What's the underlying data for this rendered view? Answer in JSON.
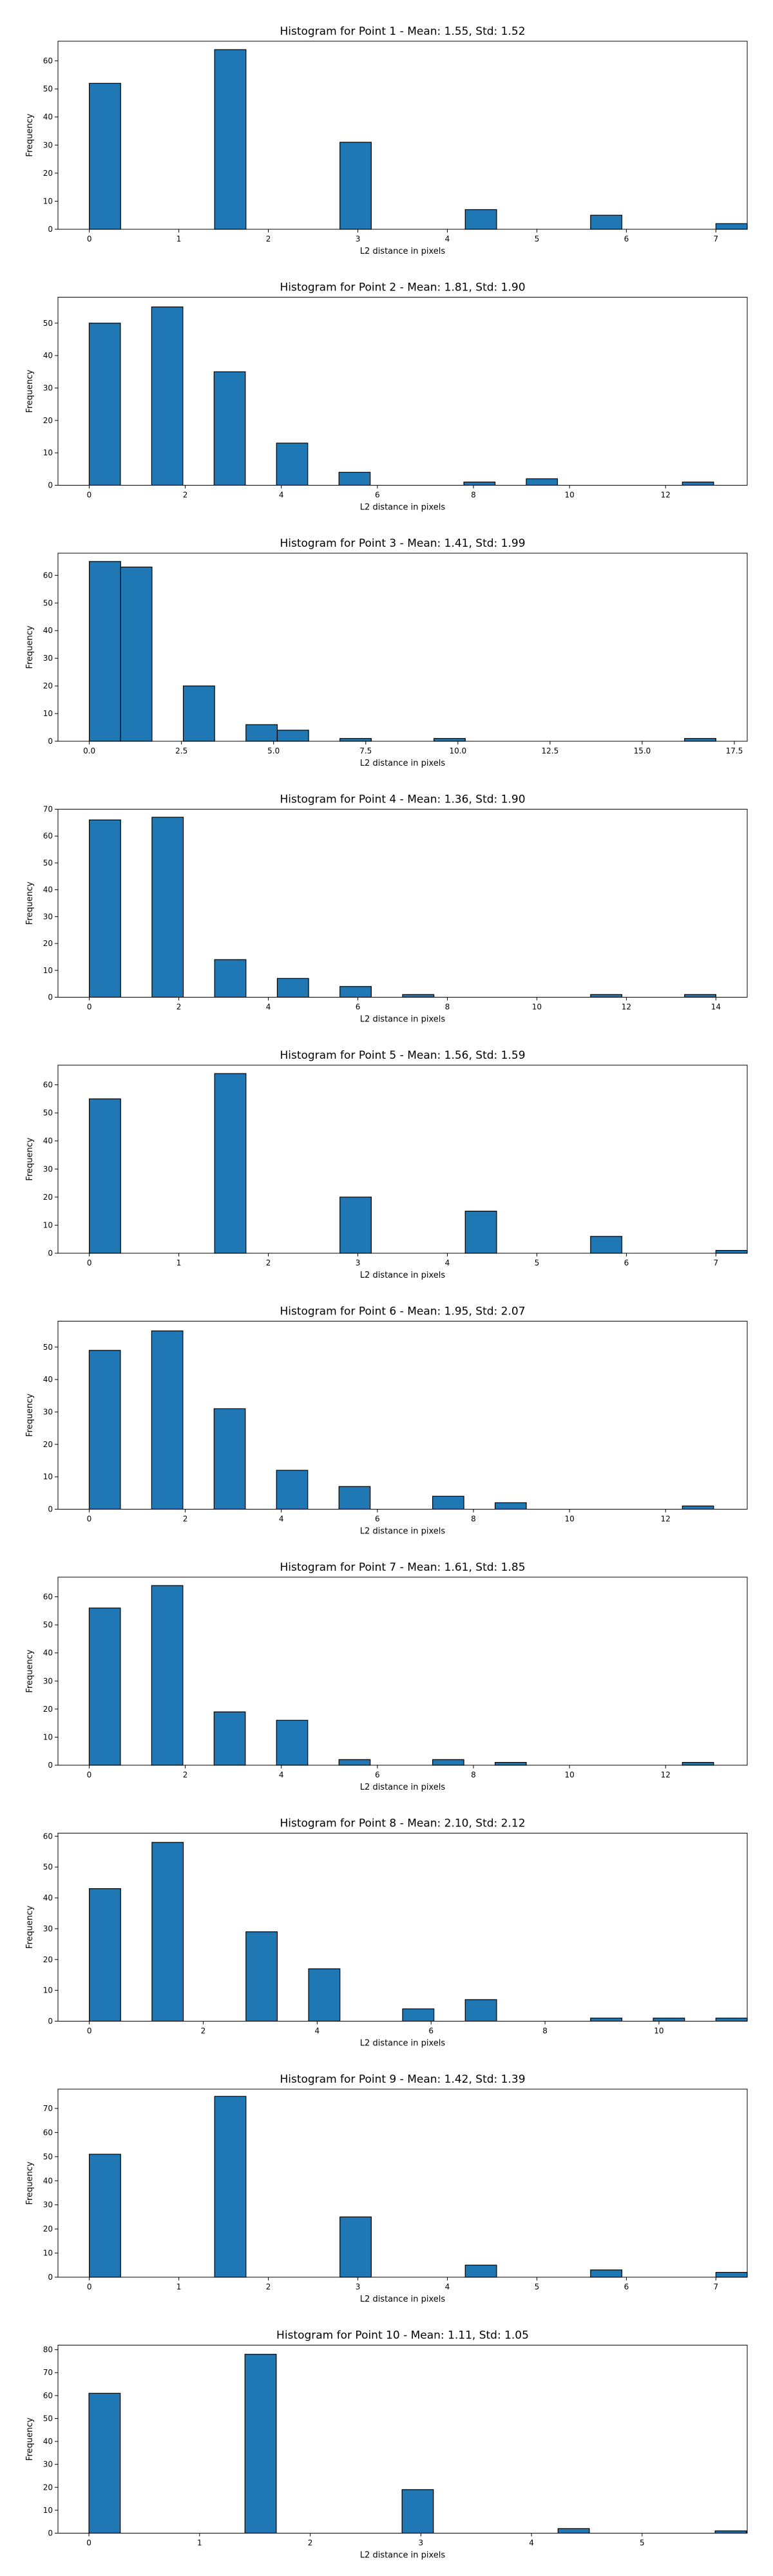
{
  "chart_data": [
    {
      "type": "bar",
      "title": "Histogram for Point 1 - Mean: 1.55, Std: 1.52",
      "xlabel": "L2 distance in pixels",
      "ylabel": "Frequency",
      "xlim": [
        -0.35,
        7.35
      ],
      "ylim": [
        0,
        67
      ],
      "xticks": [
        0,
        1,
        2,
        3,
        4,
        5,
        6,
        7
      ],
      "xtick_labels": [
        "0",
        "1",
        "2",
        "3",
        "4",
        "5",
        "6",
        "7"
      ],
      "yticks": [
        0,
        10,
        20,
        30,
        40,
        50,
        60
      ],
      "ytick_labels": [
        "0",
        "10",
        "20",
        "30",
        "40",
        "50",
        "60"
      ],
      "bin_width": 0.35,
      "bins_left": [
        0,
        1.4,
        2.8,
        4.2,
        5.6,
        7.0
      ],
      "values": [
        52,
        64,
        31,
        7,
        5,
        2
      ]
    },
    {
      "type": "bar",
      "title": "Histogram for Point 2 - Mean: 1.81, Std: 1.90",
      "xlabel": "L2 distance in pixels",
      "ylabel": "Frequency",
      "xlim": [
        -0.65,
        13.7
      ],
      "ylim": [
        0,
        58
      ],
      "xticks": [
        0,
        2,
        4,
        6,
        8,
        10,
        12
      ],
      "xtick_labels": [
        "0",
        "2",
        "4",
        "6",
        "8",
        "10",
        "12"
      ],
      "yticks": [
        0,
        10,
        20,
        30,
        40,
        50
      ],
      "ytick_labels": [
        "0",
        "10",
        "20",
        "30",
        "40",
        "50"
      ],
      "bin_width": 0.65,
      "bins_left": [
        0,
        1.3,
        2.6,
        3.9,
        5.2,
        7.8,
        9.1,
        12.35
      ],
      "values": [
        50,
        55,
        35,
        13,
        4,
        1,
        2,
        1
      ]
    },
    {
      "type": "bar",
      "title": "Histogram for Point 3 - Mean: 1.41, Std: 1.99",
      "xlabel": "L2 distance in pixels",
      "ylabel": "Frequency",
      "xlim": [
        -0.85,
        17.85
      ],
      "ylim": [
        0,
        68
      ],
      "xticks": [
        0,
        2.5,
        5,
        7.5,
        10,
        12.5,
        15,
        17.5
      ],
      "xtick_labels": [
        "0.0",
        "2.5",
        "5.0",
        "7.5",
        "10.0",
        "12.5",
        "15.0",
        "17.5"
      ],
      "yticks": [
        0,
        10,
        20,
        30,
        40,
        50,
        60
      ],
      "ytick_labels": [
        "0",
        "10",
        "20",
        "30",
        "40",
        "50",
        "60"
      ],
      "bin_width": 0.85,
      "bins_left": [
        0,
        0.85,
        2.55,
        4.25,
        5.1,
        6.8,
        9.35,
        16.15
      ],
      "values": [
        65,
        63,
        20,
        6,
        4,
        1,
        1,
        1
      ]
    },
    {
      "type": "bar",
      "title": "Histogram for Point 4 - Mean: 1.36, Std: 1.90",
      "xlabel": "L2 distance in pixels",
      "ylabel": "Frequency",
      "xlim": [
        -0.7,
        14.7
      ],
      "ylim": [
        0,
        70
      ],
      "xticks": [
        0,
        2,
        4,
        6,
        8,
        10,
        12,
        14
      ],
      "xtick_labels": [
        "0",
        "2",
        "4",
        "6",
        "8",
        "10",
        "12",
        "14"
      ],
      "yticks": [
        0,
        10,
        20,
        30,
        40,
        50,
        60,
        70
      ],
      "ytick_labels": [
        "0",
        "10",
        "20",
        "30",
        "40",
        "50",
        "60",
        "70"
      ],
      "bin_width": 0.7,
      "bins_left": [
        0,
        1.4,
        2.8,
        4.2,
        5.6,
        7.0,
        11.2,
        13.3
      ],
      "values": [
        66,
        67,
        14,
        7,
        4,
        1,
        1,
        1
      ]
    },
    {
      "type": "bar",
      "title": "Histogram for Point 5 - Mean: 1.56, Std: 1.59",
      "xlabel": "L2 distance in pixels",
      "ylabel": "Frequency",
      "xlim": [
        -0.35,
        7.35
      ],
      "ylim": [
        0,
        67
      ],
      "xticks": [
        0,
        1,
        2,
        3,
        4,
        5,
        6,
        7
      ],
      "xtick_labels": [
        "0",
        "1",
        "2",
        "3",
        "4",
        "5",
        "6",
        "7"
      ],
      "yticks": [
        0,
        10,
        20,
        30,
        40,
        50,
        60
      ],
      "ytick_labels": [
        "0",
        "10",
        "20",
        "30",
        "40",
        "50",
        "60"
      ],
      "bin_width": 0.35,
      "bins_left": [
        0,
        1.4,
        2.8,
        4.2,
        5.6,
        7.0
      ],
      "values": [
        55,
        64,
        20,
        15,
        6,
        1
      ]
    },
    {
      "type": "bar",
      "title": "Histogram for Point 6 - Mean: 1.95, Std: 2.07",
      "xlabel": "L2 distance in pixels",
      "ylabel": "Frequency",
      "xlim": [
        -0.65,
        13.7
      ],
      "ylim": [
        0,
        58
      ],
      "xticks": [
        0,
        2,
        4,
        6,
        8,
        10,
        12
      ],
      "xtick_labels": [
        "0",
        "2",
        "4",
        "6",
        "8",
        "10",
        "12"
      ],
      "yticks": [
        0,
        10,
        20,
        30,
        40,
        50
      ],
      "ytick_labels": [
        "0",
        "10",
        "20",
        "30",
        "40",
        "50"
      ],
      "bin_width": 0.65,
      "bins_left": [
        0,
        1.3,
        2.6,
        3.9,
        5.2,
        7.15,
        8.45,
        12.35
      ],
      "values": [
        49,
        55,
        31,
        12,
        7,
        4,
        2,
        1
      ]
    },
    {
      "type": "bar",
      "title": "Histogram for Point 7 - Mean: 1.61, Std: 1.85",
      "xlabel": "L2 distance in pixels",
      "ylabel": "Frequency",
      "xlim": [
        -0.65,
        13.7
      ],
      "ylim": [
        0,
        67
      ],
      "xticks": [
        0,
        2,
        4,
        6,
        8,
        10,
        12
      ],
      "xtick_labels": [
        "0",
        "2",
        "4",
        "6",
        "8",
        "10",
        "12"
      ],
      "yticks": [
        0,
        10,
        20,
        30,
        40,
        50,
        60
      ],
      "ytick_labels": [
        "0",
        "10",
        "20",
        "30",
        "40",
        "50",
        "60"
      ],
      "bin_width": 0.65,
      "bins_left": [
        0,
        1.3,
        2.6,
        3.9,
        5.2,
        7.15,
        8.45,
        12.35
      ],
      "values": [
        56,
        64,
        19,
        16,
        2,
        2,
        1,
        1
      ]
    },
    {
      "type": "bar",
      "title": "Histogram for Point 8 - Mean: 2.10, Std: 2.12",
      "xlabel": "L2 distance in pixels",
      "ylabel": "Frequency",
      "xlim": [
        -0.55,
        11.55
      ],
      "ylim": [
        0,
        61
      ],
      "xticks": [
        0,
        2,
        4,
        6,
        8,
        10
      ],
      "xtick_labels": [
        "0",
        "2",
        "4",
        "6",
        "8",
        "10"
      ],
      "yticks": [
        0,
        10,
        20,
        30,
        40,
        50,
        60
      ],
      "ytick_labels": [
        "0",
        "10",
        "20",
        "30",
        "40",
        "50",
        "60"
      ],
      "bin_width": 0.55,
      "bins_left": [
        0,
        1.1,
        2.75,
        3.85,
        5.5,
        6.6,
        8.8,
        9.9,
        11.0
      ],
      "values": [
        43,
        58,
        29,
        17,
        4,
        7,
        1,
        1,
        1
      ]
    },
    {
      "type": "bar",
      "title": "Histogram for Point 9 - Mean: 1.42, Std: 1.39",
      "xlabel": "L2 distance in pixels",
      "ylabel": "Frequency",
      "xlim": [
        -0.35,
        7.35
      ],
      "ylim": [
        0,
        78
      ],
      "xticks": [
        0,
        1,
        2,
        3,
        4,
        5,
        6,
        7
      ],
      "xtick_labels": [
        "0",
        "1",
        "2",
        "3",
        "4",
        "5",
        "6",
        "7"
      ],
      "yticks": [
        0,
        10,
        20,
        30,
        40,
        50,
        60,
        70
      ],
      "ytick_labels": [
        "0",
        "10",
        "20",
        "30",
        "40",
        "50",
        "60",
        "70"
      ],
      "bin_width": 0.35,
      "bins_left": [
        0,
        1.4,
        2.8,
        4.2,
        5.6,
        7.0
      ],
      "values": [
        51,
        75,
        25,
        5,
        3,
        2
      ]
    },
    {
      "type": "bar",
      "title": "Histogram for Point 10 - Mean: 1.11, Std: 1.05",
      "xlabel": "L2 distance in pixels",
      "ylabel": "Frequency",
      "xlim": [
        -0.28,
        5.95
      ],
      "ylim": [
        0,
        82
      ],
      "xticks": [
        0,
        1,
        2,
        3,
        4,
        5
      ],
      "xtick_labels": [
        "0",
        "1",
        "2",
        "3",
        "4",
        "5"
      ],
      "yticks": [
        0,
        10,
        20,
        30,
        40,
        50,
        60,
        70,
        80
      ],
      "ytick_labels": [
        "0",
        "10",
        "20",
        "30",
        "40",
        "50",
        "60",
        "70",
        "80"
      ],
      "bin_width": 0.283,
      "bins_left": [
        0,
        1.41,
        2.83,
        4.24,
        5.66
      ],
      "values": [
        61,
        78,
        19,
        2,
        1
      ]
    }
  ],
  "colors": {
    "bar_fill": "#1f77b4",
    "bar_edge": "#000000"
  }
}
